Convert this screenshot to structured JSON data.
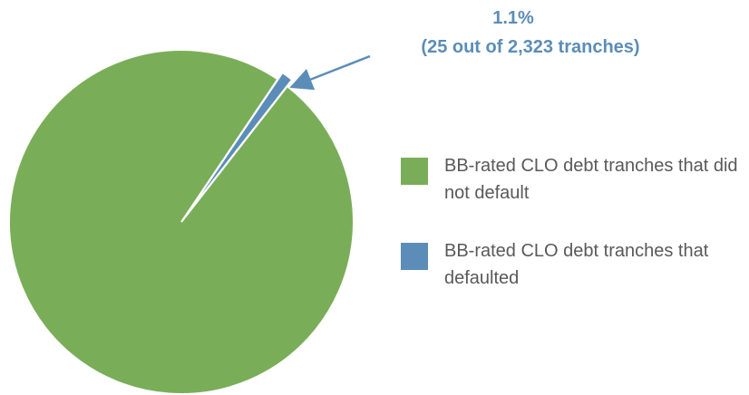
{
  "chart_data": {
    "type": "pie",
    "categories": [
      "BB-rated CLO debt tranches that did not default",
      "BB-rated CLO debt tranches that defaulted"
    ],
    "values": [
      98.9,
      1.1
    ],
    "value_labels": [
      null,
      "1.1%"
    ],
    "colors": [
      "#7aad58",
      "#5b8db8"
    ],
    "annotation": "(25 out of 2,323 tranches)",
    "legend": "right"
  }
}
